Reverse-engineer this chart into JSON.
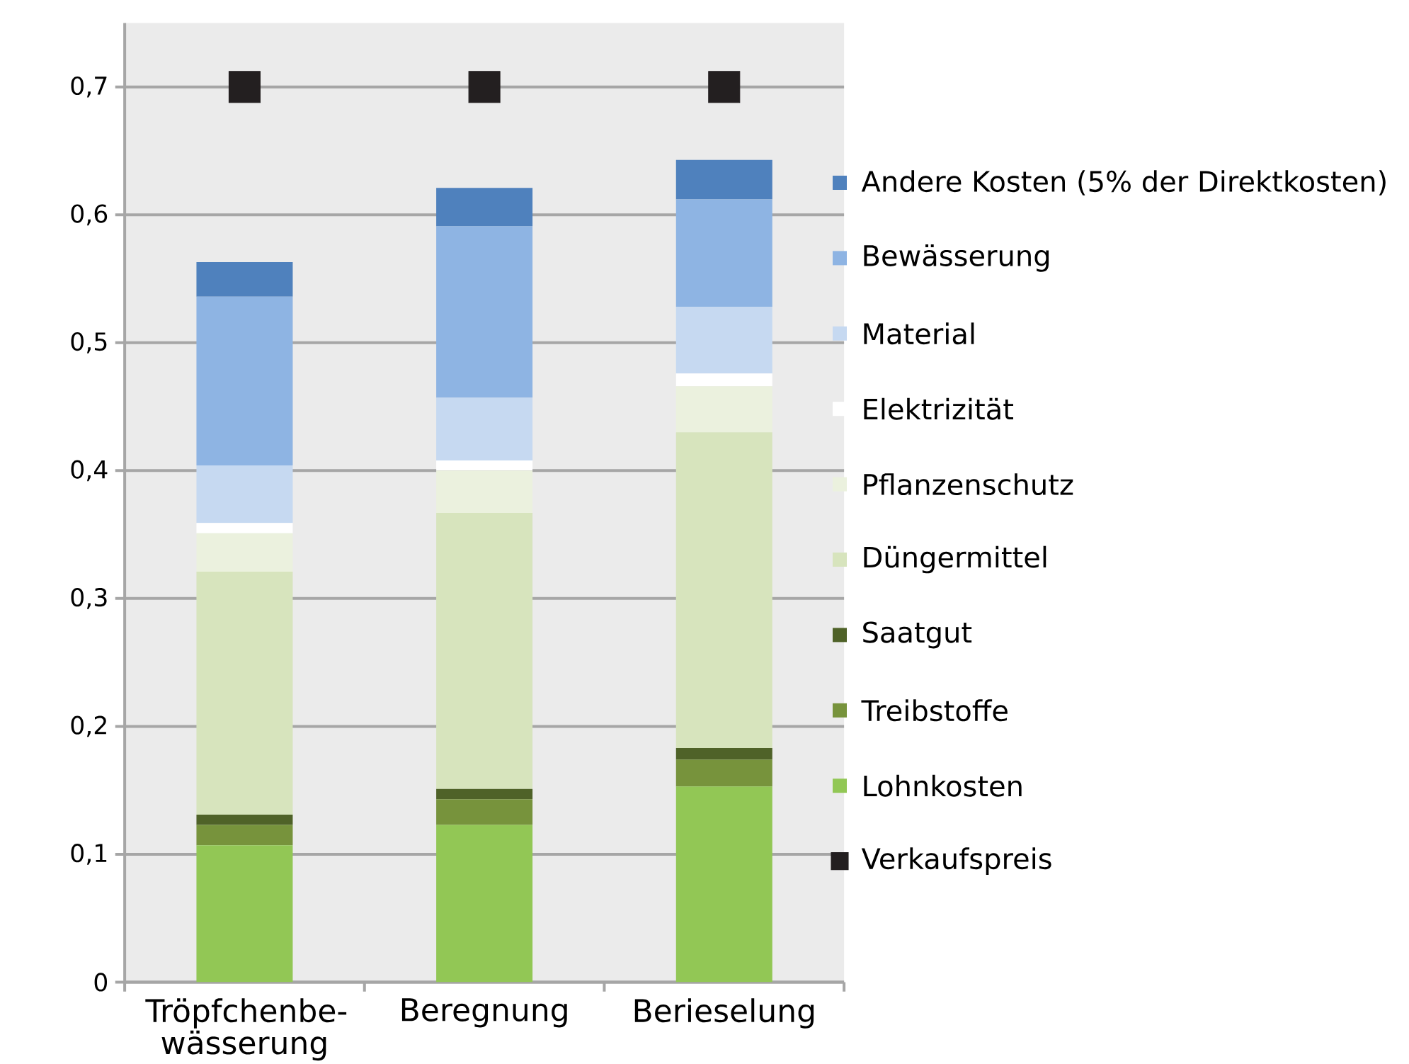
{
  "chart_data": {
    "type": "bar",
    "stacked": true,
    "categories": [
      "Tröpfchenbe-wässerung",
      "Beregnung",
      "Berieselung"
    ],
    "series": [
      {
        "name": "Lohnkosten",
        "color": "#92c755",
        "values": [
          0.107,
          0.123,
          0.153
        ]
      },
      {
        "name": "Treibstoffe",
        "color": "#77933c",
        "values": [
          0.016,
          0.02,
          0.021
        ]
      },
      {
        "name": "Saatgut",
        "color": "#4f6228",
        "values": [
          0.008,
          0.008,
          0.009
        ]
      },
      {
        "name": "Düngermittel",
        "color": "#d7e4bd",
        "values": [
          0.19,
          0.216,
          0.247
        ]
      },
      {
        "name": "Pflanzenschutz",
        "color": "#ebf1de",
        "values": [
          0.03,
          0.033,
          0.036
        ]
      },
      {
        "name": "Elektrizität",
        "color": "#ffffff",
        "values": [
          0.008,
          0.008,
          0.01
        ]
      },
      {
        "name": "Material",
        "color": "#c6d9f1",
        "values": [
          0.045,
          0.049,
          0.052
        ]
      },
      {
        "name": "Bewässerung",
        "color": "#8eb4e3",
        "values": [
          0.132,
          0.134,
          0.084
        ]
      },
      {
        "name": "Andere Kosten (5% der Direktkosten)",
        "color": "#4f81bd",
        "values": [
          0.027,
          0.03,
          0.031
        ]
      },
      {
        "name": "Verkaufspreis",
        "type": "scatter",
        "marker": "square",
        "color": "#231f20",
        "x": [
          "Tröpfchenbe-wässerung",
          "Beregnung",
          "Berieselung"
        ],
        "values": [
          0.7,
          0.7,
          0.7
        ]
      }
    ],
    "ylim": [
      0,
      0.75
    ],
    "yticks": [
      {
        "value": 0,
        "label": "0"
      },
      {
        "value": 0.1,
        "label": "0,1"
      },
      {
        "value": 0.2,
        "label": "0,2"
      },
      {
        "value": 0.3,
        "label": "0,3"
      },
      {
        "value": 0.4,
        "label": "0,4"
      },
      {
        "value": 0.5,
        "label": "0,5"
      },
      {
        "value": 0.6,
        "label": "0,6"
      },
      {
        "value": 0.7,
        "label": "0,7"
      }
    ],
    "grid": "y",
    "legend": "right"
  }
}
